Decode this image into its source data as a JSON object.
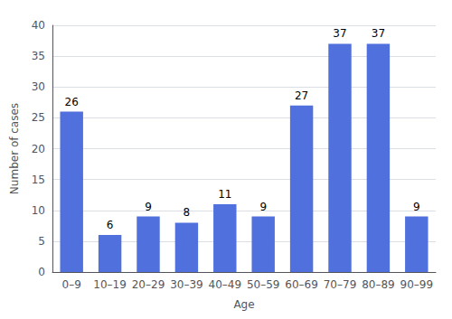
{
  "chart_data": {
    "type": "bar",
    "categories": [
      "0–9",
      "10–19",
      "20–29",
      "30–39",
      "40–49",
      "50–59",
      "60–69",
      "70–79",
      "80–89",
      "90–99"
    ],
    "values": [
      26,
      6,
      9,
      8,
      11,
      9,
      27,
      37,
      37,
      9
    ],
    "xlabel": "Age",
    "ylabel": "Number of cases",
    "ylim": [
      0,
      40
    ],
    "yticks": [
      0,
      5,
      10,
      15,
      20,
      25,
      30,
      35,
      40
    ],
    "grid": true,
    "data_labels": true
  }
}
